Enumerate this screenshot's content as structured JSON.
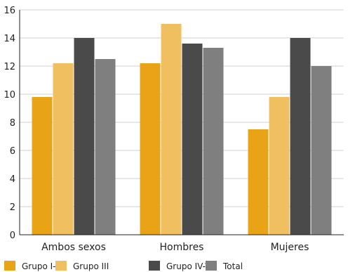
{
  "chart_data": {
    "type": "bar",
    "title": "",
    "xlabel": "",
    "ylabel": "",
    "ylim": [
      0,
      16
    ],
    "yticks": [
      0,
      2,
      4,
      6,
      8,
      10,
      12,
      14,
      16
    ],
    "grid": true,
    "legend_position": "bottom",
    "categories": [
      "Ambos sexos",
      "Hombres",
      "Mujeres"
    ],
    "series": [
      {
        "name": "Grupo I-II",
        "color": "#E8A317",
        "values": [
          9.8,
          12.2,
          7.5
        ]
      },
      {
        "name": "Grupo III",
        "color": "#F0C060",
        "values": [
          12.2,
          15.0,
          9.8
        ]
      },
      {
        "name": "Grupo IV-V",
        "color": "#4A4A4A",
        "values": [
          14.0,
          13.6,
          14.0
        ]
      },
      {
        "name": "Total",
        "color": "#7F7F7F",
        "values": [
          12.5,
          13.3,
          12.0
        ]
      }
    ]
  }
}
